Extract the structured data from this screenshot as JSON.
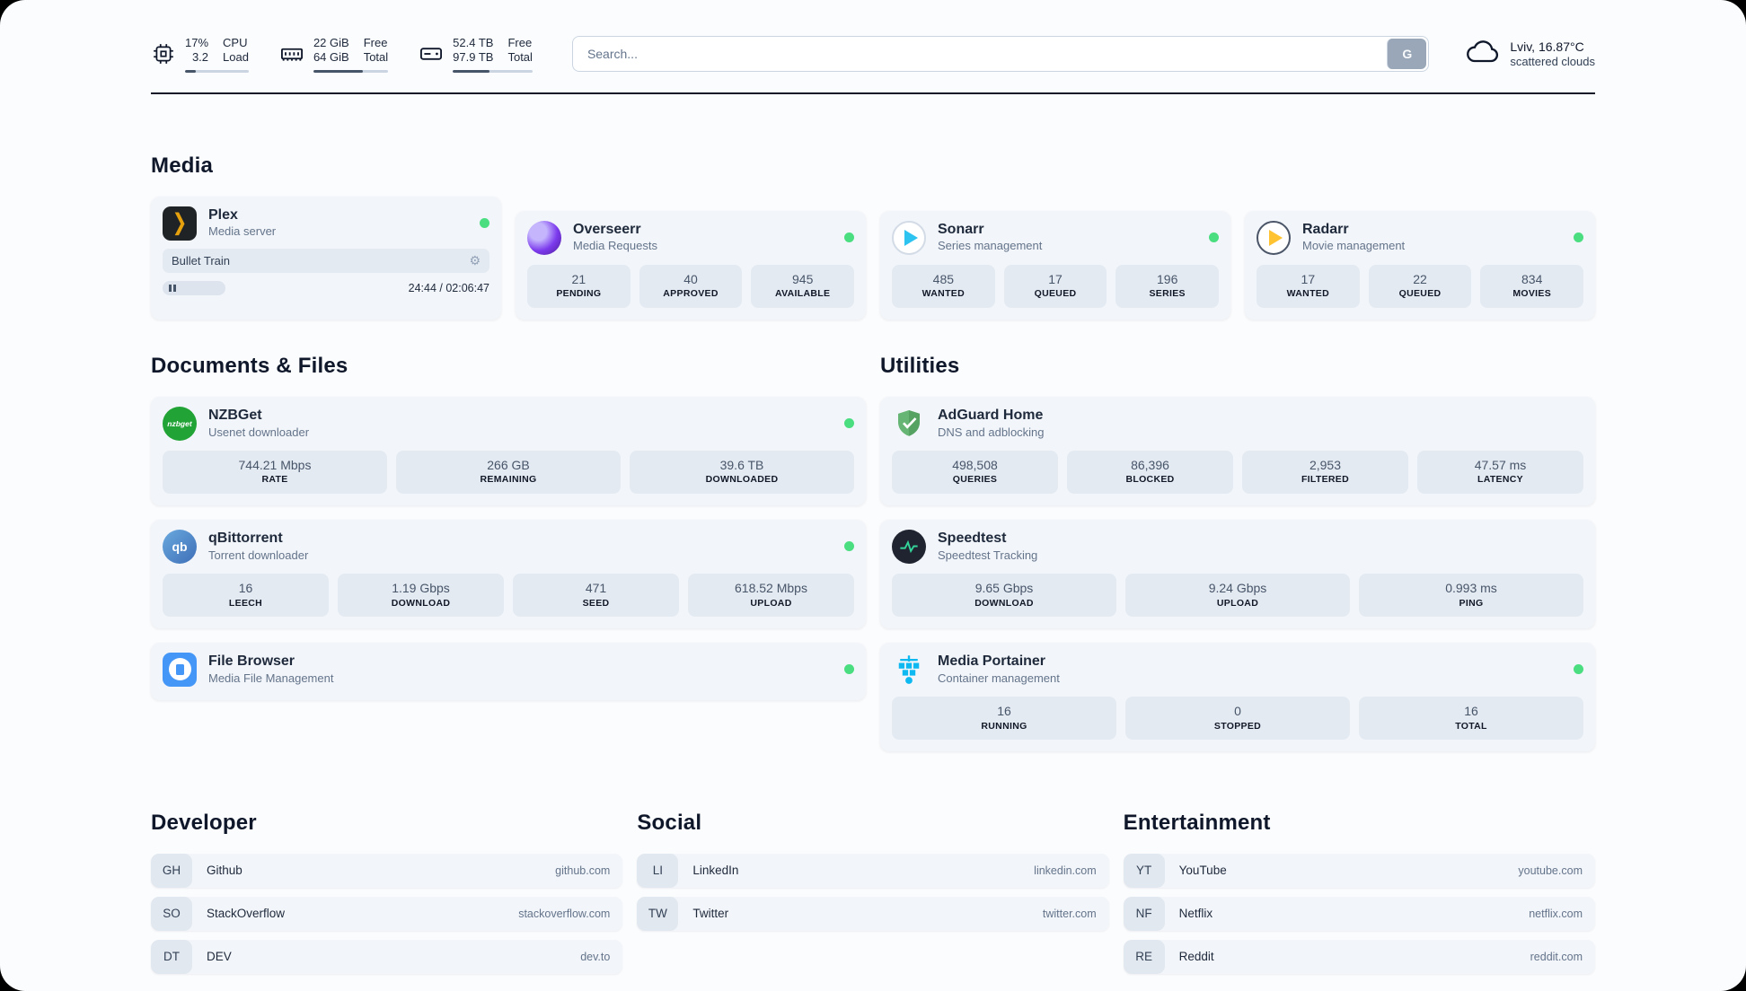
{
  "header": {
    "cpu": {
      "usage": "17%",
      "load": "3.2",
      "label_top": "CPU",
      "label_bottom": "Load",
      "bar_percent": 17
    },
    "memory": {
      "free": "22 GiB",
      "total": "64 GiB",
      "label_top": "Free",
      "label_bottom": "Total",
      "bar_percent": 66
    },
    "disk": {
      "free": "52.4 TB",
      "total": "97.9 TB",
      "label_top": "Free",
      "label_bottom": "Total",
      "bar_percent": 46
    },
    "search": {
      "placeholder": "Search...",
      "button": "G"
    },
    "weather": {
      "location": "Lviv, 16.87°C",
      "condition": "scattered clouds"
    }
  },
  "sections": {
    "media": "Media",
    "documents": "Documents & Files",
    "utilities": "Utilities",
    "developer": "Developer",
    "social": "Social",
    "entertainment": "Entertainment"
  },
  "services": {
    "plex": {
      "name": "Plex",
      "description": "Media server",
      "icon_text": "❯",
      "now_playing": "Bullet Train",
      "gear_glyph": "⚙",
      "time": "24:44 / 02:06:47"
    },
    "overseerr": {
      "name": "Overseerr",
      "description": "Media Requests",
      "stats": [
        {
          "value": "21",
          "label": "PENDING"
        },
        {
          "value": "40",
          "label": "APPROVED"
        },
        {
          "value": "945",
          "label": "AVAILABLE"
        }
      ]
    },
    "sonarr": {
      "name": "Sonarr",
      "description": "Series management",
      "stats": [
        {
          "value": "485",
          "label": "WANTED"
        },
        {
          "value": "17",
          "label": "QUEUED"
        },
        {
          "value": "196",
          "label": "SERIES"
        }
      ]
    },
    "radarr": {
      "name": "Radarr",
      "description": "Movie management",
      "stats": [
        {
          "value": "17",
          "label": "WANTED"
        },
        {
          "value": "22",
          "label": "QUEUED"
        },
        {
          "value": "834",
          "label": "MOVIES"
        }
      ]
    },
    "nzbget": {
      "name": "NZBGet",
      "description": "Usenet downloader",
      "icon_text": "nzbget",
      "stats": [
        {
          "value": "744.21 Mbps",
          "label": "RATE"
        },
        {
          "value": "266 GB",
          "label": "REMAINING"
        },
        {
          "value": "39.6 TB",
          "label": "DOWNLOADED"
        }
      ]
    },
    "qbittorrent": {
      "name": "qBittorrent",
      "description": "Torrent downloader",
      "icon_text": "qb",
      "stats": [
        {
          "value": "16",
          "label": "LEECH"
        },
        {
          "value": "1.19 Gbps",
          "label": "DOWNLOAD"
        },
        {
          "value": "471",
          "label": "SEED"
        },
        {
          "value": "618.52 Mbps",
          "label": "UPLOAD"
        }
      ]
    },
    "filebrowser": {
      "name": "File Browser",
      "description": "Media File Management"
    },
    "adguard": {
      "name": "AdGuard Home",
      "description": "DNS and adblocking",
      "stats": [
        {
          "value": "498,508",
          "label": "QUERIES"
        },
        {
          "value": "86,396",
          "label": "BLOCKED"
        },
        {
          "value": "2,953",
          "label": "FILTERED"
        },
        {
          "value": "47.57 ms",
          "label": "LATENCY"
        }
      ]
    },
    "speedtest": {
      "name": "Speedtest",
      "description": "Speedtest Tracking",
      "stats": [
        {
          "value": "9.65 Gbps",
          "label": "DOWNLOAD"
        },
        {
          "value": "9.24 Gbps",
          "label": "UPLOAD"
        },
        {
          "value": "0.993 ms",
          "label": "PING"
        }
      ]
    },
    "portainer": {
      "name": "Media Portainer",
      "description": "Container management",
      "stats": [
        {
          "value": "16",
          "label": "RUNNING"
        },
        {
          "value": "0",
          "label": "STOPPED"
        },
        {
          "value": "16",
          "label": "TOTAL"
        }
      ]
    }
  },
  "bookmarks": {
    "developer": [
      {
        "abbr": "GH",
        "name": "Github",
        "domain": "github.com"
      },
      {
        "abbr": "SO",
        "name": "StackOverflow",
        "domain": "stackoverflow.com"
      },
      {
        "abbr": "DT",
        "name": "DEV",
        "domain": "dev.to"
      }
    ],
    "social": [
      {
        "abbr": "LI",
        "name": "LinkedIn",
        "domain": "linkedin.com"
      },
      {
        "abbr": "TW",
        "name": "Twitter",
        "domain": "twitter.com"
      }
    ],
    "entertainment": [
      {
        "abbr": "YT",
        "name": "YouTube",
        "domain": "youtube.com"
      },
      {
        "abbr": "NF",
        "name": "Netflix",
        "domain": "netflix.com"
      },
      {
        "abbr": "RE",
        "name": "Reddit",
        "domain": "reddit.com"
      }
    ]
  },
  "colors": {
    "status_online": "#4ade80",
    "plex_accent": "#e5a00d",
    "sonarr_accent": "#2cc3f0",
    "radarr_accent": "#ffc230",
    "nzbget_accent": "#21a336",
    "qbittorrent_accent": "#3e6fb8",
    "filebrowser_accent": "#4597f7",
    "adguard_accent": "#66b574",
    "speedtest_accent": "#34d399",
    "portainer_accent": "#0db9f0",
    "overseerr_accent": "#7c3aed"
  }
}
